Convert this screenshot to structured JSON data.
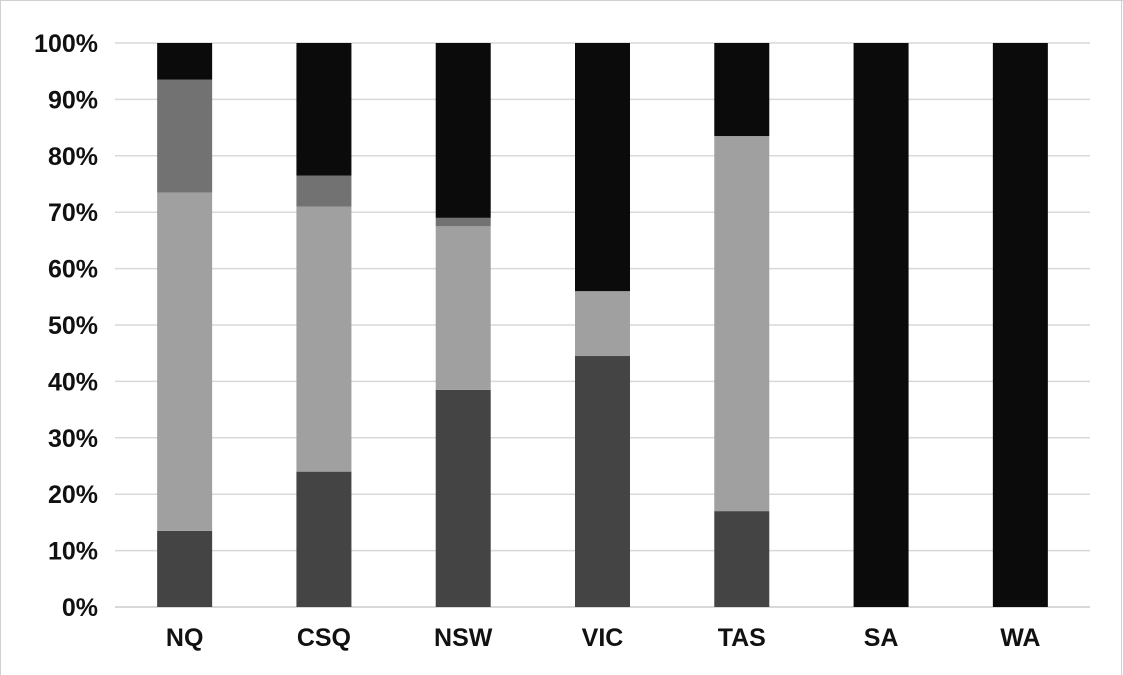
{
  "chart_data": {
    "type": "bar",
    "stacked": true,
    "percent": true,
    "categories": [
      "NQ",
      "CSQ",
      "NSW",
      "VIC",
      "TAS",
      "SA",
      "WA"
    ],
    "series": [
      {
        "values": [
          13.5,
          24,
          38.5,
          44.5,
          17,
          0,
          0
        ],
        "color": "#444444"
      },
      {
        "values": [
          60,
          47,
          29,
          11.5,
          66.5,
          0,
          0
        ],
        "color": "#a0a0a0"
      },
      {
        "values": [
          20,
          5.5,
          1.5,
          0,
          0,
          0,
          0
        ],
        "color": "#727272"
      },
      {
        "values": [
          6.5,
          23.5,
          31,
          44,
          16.5,
          100,
          100
        ],
        "color": "#0b0b0b"
      }
    ],
    "y_ticks": [
      "0%",
      "10%",
      "20%",
      "30%",
      "40%",
      "50%",
      "60%",
      "70%",
      "80%",
      "90%",
      "100%"
    ],
    "ylim": [
      0,
      100
    ],
    "grid": true,
    "gridline_color": "#d9d9d9"
  }
}
